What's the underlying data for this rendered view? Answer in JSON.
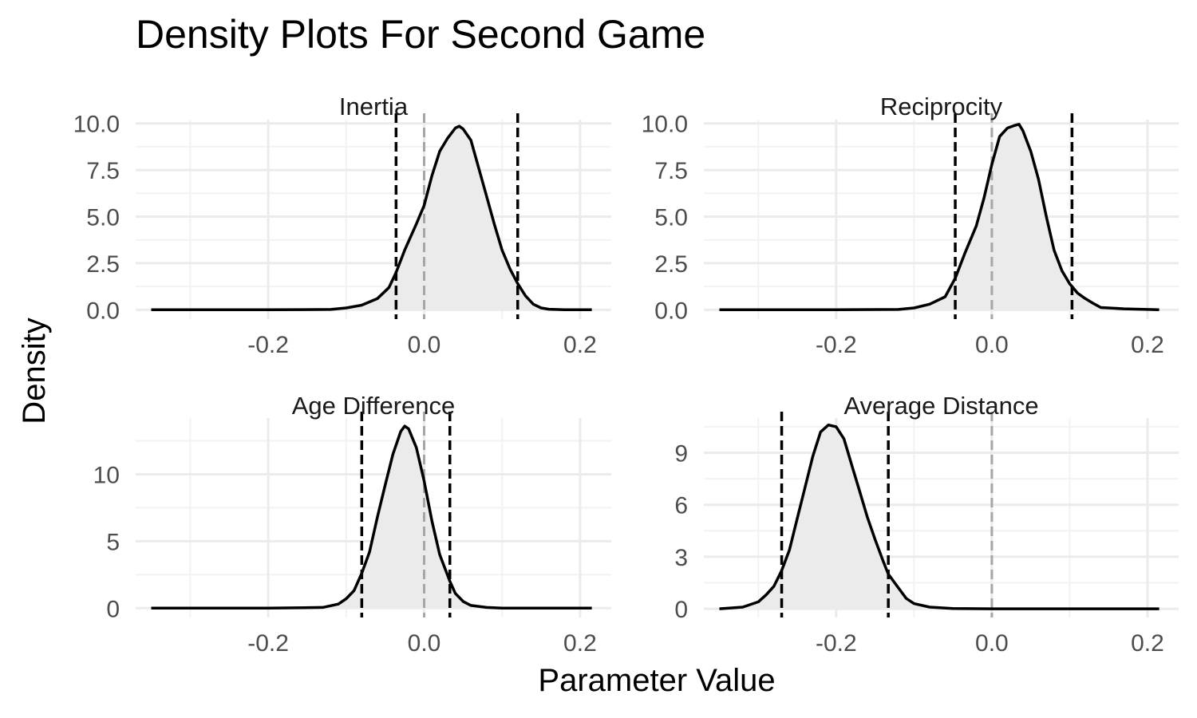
{
  "chart_data": {
    "type": "area",
    "title": "Density Plots For Second Game",
    "xlabel": "Parameter Value",
    "ylabel": "Density",
    "grid": true,
    "legend": "none",
    "x_ticks": [
      -0.2,
      0.0,
      0.2
    ],
    "x_tick_labels": [
      "-0.2",
      "0.0",
      "0.2"
    ],
    "xlim": [
      -0.37,
      0.24
    ],
    "reference_line_x": 0.0,
    "colors": {
      "fill": "#ebebeb",
      "curve": "#000000",
      "reference": "#a6a6a6",
      "interval": "#000000",
      "grid_major": "#ebebeb",
      "grid_minor": "#f2f2f2"
    },
    "panels": [
      {
        "name": "Inertia",
        "ylim": [
          -0.5,
          10.2
        ],
        "y_ticks": [
          0,
          2.5,
          5,
          7.5,
          10
        ],
        "y_tick_labels": [
          "0.0",
          "2.5",
          "5.0",
          "7.5",
          "10.0"
        ],
        "interval": [
          -0.036,
          0.12
        ],
        "x": [
          -0.35,
          -0.2,
          -0.12,
          -0.1,
          -0.08,
          -0.06,
          -0.045,
          -0.036,
          -0.025,
          -0.01,
          0.0,
          0.01,
          0.02,
          0.03,
          0.04,
          0.045,
          0.05,
          0.06,
          0.07,
          0.08,
          0.09,
          0.1,
          0.11,
          0.12,
          0.13,
          0.14,
          0.15,
          0.16,
          0.18,
          0.215
        ],
        "y": [
          0.0,
          0.0,
          0.02,
          0.1,
          0.25,
          0.6,
          1.2,
          2.0,
          3.2,
          4.6,
          5.6,
          7.2,
          8.5,
          9.2,
          9.75,
          9.85,
          9.7,
          9.1,
          7.6,
          6.1,
          4.6,
          3.2,
          2.2,
          1.4,
          0.75,
          0.3,
          0.1,
          0.03,
          0.0,
          0.0
        ]
      },
      {
        "name": "Reciprocity",
        "ylim": [
          -0.5,
          10.2
        ],
        "y_ticks": [
          0,
          2.5,
          5,
          7.5,
          10
        ],
        "y_tick_labels": [
          "0.0",
          "2.5",
          "5.0",
          "7.5",
          "10.0"
        ],
        "interval": [
          -0.047,
          0.103
        ],
        "x": [
          -0.35,
          -0.2,
          -0.12,
          -0.1,
          -0.08,
          -0.06,
          -0.047,
          -0.035,
          -0.02,
          -0.01,
          0.0,
          0.01,
          0.02,
          0.03,
          0.035,
          0.04,
          0.05,
          0.06,
          0.07,
          0.08,
          0.09,
          0.1,
          0.11,
          0.12,
          0.13,
          0.14,
          0.15,
          0.17,
          0.215
        ],
        "y": [
          0.0,
          0.0,
          0.02,
          0.1,
          0.3,
          0.7,
          1.7,
          3.0,
          4.5,
          6.0,
          7.8,
          9.3,
          9.75,
          9.9,
          9.95,
          9.6,
          8.5,
          7.0,
          5.0,
          3.2,
          2.1,
          1.4,
          0.9,
          0.6,
          0.35,
          0.12,
          0.1,
          0.05,
          0.0
        ]
      },
      {
        "name": "Age Difference",
        "ylim": [
          -0.7,
          14.2
        ],
        "y_ticks": [
          0,
          5,
          10
        ],
        "y_tick_labels": [
          "0",
          "5",
          "10"
        ],
        "interval": [
          -0.08,
          0.033
        ],
        "x": [
          -0.35,
          -0.2,
          -0.13,
          -0.11,
          -0.1,
          -0.09,
          -0.08,
          -0.07,
          -0.06,
          -0.05,
          -0.04,
          -0.03,
          -0.025,
          -0.02,
          -0.01,
          0.0,
          0.01,
          0.02,
          0.033,
          0.04,
          0.05,
          0.06,
          0.08,
          0.1,
          0.215
        ],
        "y": [
          0.0,
          0.0,
          0.05,
          0.3,
          0.7,
          1.3,
          2.6,
          4.2,
          6.8,
          9.2,
          11.5,
          13.2,
          13.6,
          13.4,
          12.0,
          9.5,
          6.5,
          4.0,
          2.0,
          1.1,
          0.5,
          0.2,
          0.05,
          0.0,
          0.0
        ]
      },
      {
        "name": "Average Distance",
        "ylim": [
          -0.5,
          11.0
        ],
        "y_ticks": [
          0,
          3,
          6,
          9
        ],
        "y_tick_labels": [
          "0",
          "3",
          "6",
          "9"
        ],
        "interval": [
          -0.27,
          -0.133
        ],
        "x": [
          -0.35,
          -0.32,
          -0.3,
          -0.29,
          -0.28,
          -0.27,
          -0.26,
          -0.25,
          -0.24,
          -0.23,
          -0.22,
          -0.21,
          -0.2,
          -0.19,
          -0.18,
          -0.17,
          -0.16,
          -0.15,
          -0.14,
          -0.133,
          -0.12,
          -0.11,
          -0.1,
          -0.08,
          -0.05,
          0.0,
          0.215
        ],
        "y": [
          0.0,
          0.1,
          0.4,
          0.8,
          1.3,
          2.2,
          3.4,
          5.2,
          7.0,
          8.8,
          10.2,
          10.6,
          10.5,
          9.8,
          8.3,
          6.8,
          5.3,
          4.0,
          2.8,
          2.0,
          1.2,
          0.6,
          0.3,
          0.1,
          0.02,
          0.0,
          0.0
        ]
      }
    ]
  }
}
